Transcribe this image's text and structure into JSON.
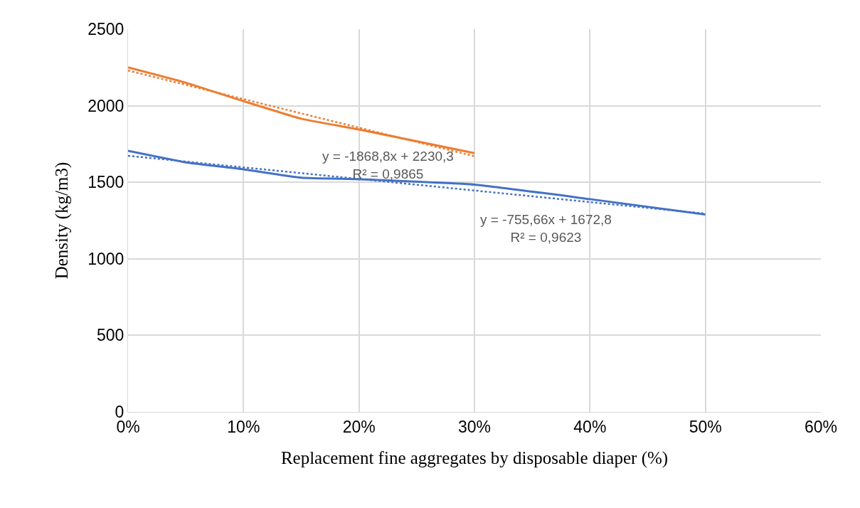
{
  "chart_data": {
    "type": "line",
    "xlabel": "Replacement fine aggregates by disposable diaper (%)",
    "ylabel": "Density (kg/m3)",
    "xlim": [
      0,
      60
    ],
    "xticks": [
      {
        "value": 0,
        "label": "0%"
      },
      {
        "value": 10,
        "label": "10%"
      },
      {
        "value": 20,
        "label": "20%"
      },
      {
        "value": 30,
        "label": "30%"
      },
      {
        "value": 40,
        "label": "40%"
      },
      {
        "value": 50,
        "label": "50%"
      },
      {
        "value": 60,
        "label": "60%"
      }
    ],
    "ylim": [
      0,
      2500
    ],
    "yticks": [
      0,
      500,
      1000,
      1500,
      2000,
      2500
    ],
    "grid": true,
    "marker": "none",
    "series": [
      {
        "color": "#ed7d31",
        "x": [
          0,
          5,
          10,
          15,
          20,
          30
        ],
        "values": [
          2250,
          2150,
          2030,
          1915,
          1845,
          1690
        ]
      },
      {
        "color": "#4472c4",
        "x": [
          0,
          5,
          10,
          15,
          20,
          30,
          40,
          50
        ],
        "values": [
          1705,
          1630,
          1585,
          1530,
          1520,
          1485,
          1390,
          1290
        ]
      },
      {
        "color": "#ed7d31",
        "line_style": "dotted",
        "x": [
          0,
          30
        ],
        "values": [
          2230,
          1670
        ]
      },
      {
        "color": "#4472c4",
        "line_style": "dotted",
        "x": [
          0,
          50
        ],
        "values": [
          1673,
          1295
        ]
      }
    ],
    "annotations": [
      "y = -1868,8x + 2230,3\nR² = 0,9865",
      "y = -755,66x + 1672,8\nR² = 0,9623"
    ]
  }
}
